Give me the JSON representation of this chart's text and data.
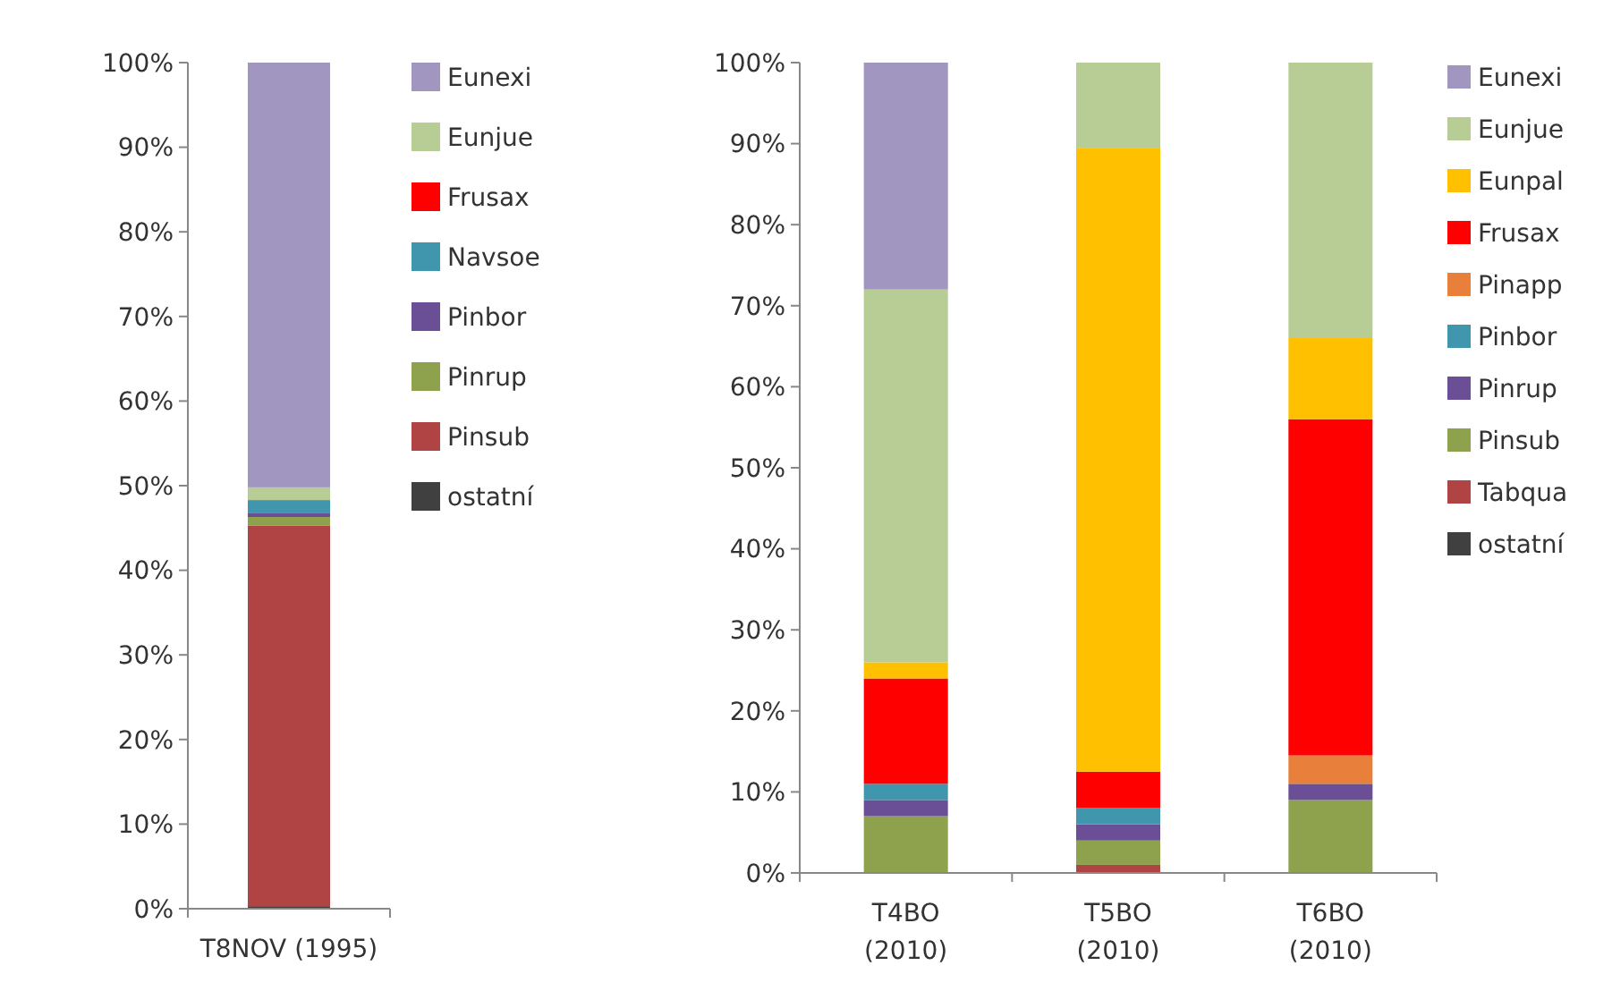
{
  "chart_data": [
    {
      "type": "bar",
      "stacked": true,
      "categories": [
        "T8NOV (1995)"
      ],
      "ylim": [
        0,
        100
      ],
      "yticks": [
        {
          "value": 0,
          "label": "0%"
        },
        {
          "value": 10,
          "label": "10%"
        },
        {
          "value": 20,
          "label": "20%"
        },
        {
          "value": 30,
          "label": "30%"
        },
        {
          "value": 40,
          "label": "40%"
        },
        {
          "value": 50,
          "label": "50%"
        },
        {
          "value": 60,
          "label": "60%"
        },
        {
          "value": 70,
          "label": "70%"
        },
        {
          "value": 80,
          "label": "80%"
        },
        {
          "value": 90,
          "label": "90%"
        },
        {
          "value": 100,
          "label": "100%"
        }
      ],
      "grid": false,
      "legend": "right",
      "series": [
        {
          "name": "ostatní",
          "color": "#404040",
          "values": [
            0.3
          ]
        },
        {
          "name": "Pinsub",
          "color": "#b04444",
          "values": [
            45
          ]
        },
        {
          "name": "Pinrup",
          "color": "#8ea24e",
          "values": [
            1
          ]
        },
        {
          "name": "Pinbor",
          "color": "#6a4f96",
          "values": [
            0.5
          ]
        },
        {
          "name": "Navsoe",
          "color": "#3f96ad",
          "values": [
            1.5
          ]
        },
        {
          "name": "Frusax",
          "color": "#ff0000",
          "values": [
            0
          ]
        },
        {
          "name": "Eunjue",
          "color": "#b8cc96",
          "values": [
            1.5
          ]
        },
        {
          "name": "Eunexi",
          "color": "#a096c0",
          "values": [
            50.2
          ]
        }
      ]
    },
    {
      "type": "bar",
      "stacked": true,
      "categories": [
        "T4BO (2010)",
        "T5BO (2010)",
        "T6BO (2010)"
      ],
      "ylim": [
        0,
        100
      ],
      "yticks": [
        {
          "value": 0,
          "label": "0%"
        },
        {
          "value": 10,
          "label": "10%"
        },
        {
          "value": 20,
          "label": "20%"
        },
        {
          "value": 30,
          "label": "30%"
        },
        {
          "value": 40,
          "label": "40%"
        },
        {
          "value": 50,
          "label": "50%"
        },
        {
          "value": 60,
          "label": "60%"
        },
        {
          "value": 70,
          "label": "70%"
        },
        {
          "value": 80,
          "label": "80%"
        },
        {
          "value": 90,
          "label": "90%"
        },
        {
          "value": 100,
          "label": "100%"
        }
      ],
      "grid": false,
      "legend": "right",
      "series": [
        {
          "name": "ostatní",
          "color": "#404040",
          "values": [
            0,
            0,
            0
          ]
        },
        {
          "name": "Tabqua",
          "color": "#b04444",
          "values": [
            0,
            1,
            0
          ]
        },
        {
          "name": "Pinsub",
          "color": "#8ea24e",
          "values": [
            7,
            3,
            9
          ]
        },
        {
          "name": "Pinrup",
          "color": "#6a4f96",
          "values": [
            2,
            2,
            2
          ]
        },
        {
          "name": "Pinbor",
          "color": "#3f96ad",
          "values": [
            2,
            2,
            0
          ]
        },
        {
          "name": "Pinapp",
          "color": "#e8803c",
          "values": [
            0,
            0,
            3.5
          ]
        },
        {
          "name": "Frusax",
          "color": "#ff0000",
          "values": [
            13,
            4.5,
            41.5
          ]
        },
        {
          "name": "Eunpal",
          "color": "#ffc000",
          "values": [
            2,
            77,
            10
          ]
        },
        {
          "name": "Eunjue",
          "color": "#b8cc96",
          "values": [
            46,
            10.5,
            34
          ]
        },
        {
          "name": "Eunexi",
          "color": "#a096c0",
          "values": [
            28,
            0,
            0
          ]
        }
      ]
    }
  ]
}
